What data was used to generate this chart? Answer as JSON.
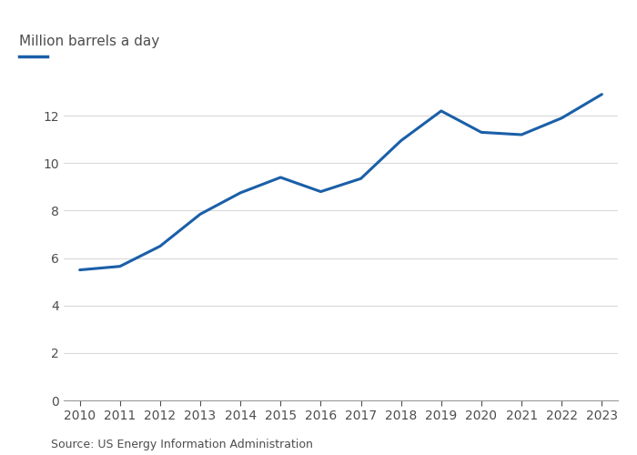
{
  "years": [
    2010,
    2011,
    2012,
    2013,
    2014,
    2015,
    2016,
    2017,
    2018,
    2019,
    2020,
    2021,
    2022,
    2023
  ],
  "values": [
    5.5,
    5.65,
    6.5,
    7.85,
    8.75,
    9.4,
    8.8,
    9.35,
    10.95,
    12.2,
    11.3,
    11.2,
    11.9,
    12.9
  ],
  "line_color": "#1a5fa8",
  "line_width": 2.2,
  "ylabel": "Million barrels a day",
  "source": "Source: US Energy Information Administration",
  "ylim": [
    0,
    14
  ],
  "yticks": [
    0,
    2,
    4,
    6,
    8,
    10,
    12
  ],
  "background_color": "#ffffff",
  "plot_bg_color": "#ffffff",
  "text_color": "#4d4d4d",
  "grid_color": "#d9d9d9",
  "tick_color": "#999999",
  "legend_line_color": "#1a5fa8",
  "title_fontsize": 11,
  "tick_fontsize": 10,
  "source_fontsize": 9
}
